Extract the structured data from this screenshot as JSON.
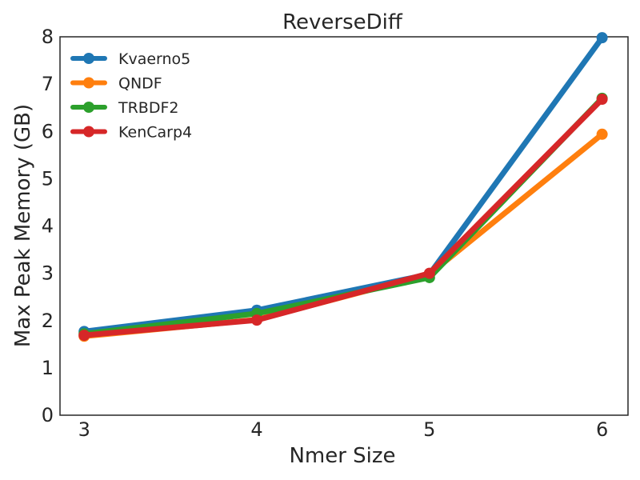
{
  "chart_data": {
    "type": "line",
    "title": "ReverseDiff",
    "xlabel": "Nmer Size",
    "ylabel": "Max Peak Memory (GB)",
    "x": [
      3,
      4,
      5,
      6
    ],
    "xlim": [
      2.86,
      6.15
    ],
    "ylim": [
      0,
      8
    ],
    "xticks": [
      "3",
      "4",
      "5",
      "6"
    ],
    "yticks": [
      "0",
      "1",
      "2",
      "3",
      "4",
      "5",
      "6",
      "7",
      "8"
    ],
    "grid": false,
    "legend_position": "top-left",
    "series": [
      {
        "name": "Kvaerno5",
        "color": "#1f77b4",
        "values": [
          1.77,
          2.22,
          2.98,
          7.98
        ]
      },
      {
        "name": "QNDF",
        "color": "#ff7f0e",
        "values": [
          1.67,
          2.02,
          2.98,
          5.94
        ]
      },
      {
        "name": "TRBDF2",
        "color": "#2ca02c",
        "values": [
          1.72,
          2.15,
          2.91,
          6.7
        ]
      },
      {
        "name": "KenCarp4",
        "color": "#d62728",
        "values": [
          1.69,
          2.01,
          3.0,
          6.68
        ]
      }
    ]
  }
}
